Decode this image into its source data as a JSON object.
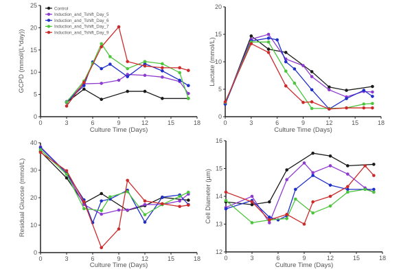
{
  "chart_data": [
    {
      "type": "line",
      "xlabel": "Culture Time (Days)",
      "ylabel": "GCPD (mmol/(L*day))",
      "xlim": [
        0,
        18
      ],
      "xticks": [
        0,
        3,
        6,
        9,
        12,
        15,
        18
      ],
      "ylim": [
        0,
        25
      ],
      "yticks": [
        0,
        5,
        10,
        15,
        20,
        25
      ],
      "legend": "top-left",
      "series": [
        {
          "name": "Control",
          "color": "#1a1a1a",
          "x": [
            3,
            5,
            7,
            10,
            12,
            14,
            17
          ],
          "y": [
            3.2,
            6.2,
            3.9,
            5.7,
            5.7,
            4.1,
            4.1
          ]
        },
        {
          "name": "Induction_and_Tshift_Day_5",
          "color": "#8e3ad0",
          "x": [
            3,
            5,
            7,
            9,
            10,
            12,
            14,
            16,
            17
          ],
          "y": [
            3.4,
            7.4,
            7.5,
            8.2,
            9.5,
            9.3,
            8.9,
            7.9,
            5.2
          ]
        },
        {
          "name": "Induction_and_Tshift_Day_6",
          "color": "#1f2fc8",
          "x": [
            3,
            5,
            6,
            7,
            8,
            10,
            12,
            14,
            16,
            17
          ],
          "y": [
            3.3,
            7.0,
            12.3,
            10.8,
            11.8,
            9.0,
            11.9,
            10.3,
            8.2,
            7.0
          ]
        },
        {
          "name": "Induction_and_Tshift_Day_7",
          "color": "#4cc43c",
          "x": [
            3,
            5,
            6,
            7,
            8,
            10,
            12,
            14,
            16,
            17
          ],
          "y": [
            3.3,
            8.0,
            12.0,
            16.4,
            13.5,
            10.8,
            12.4,
            11.9,
            9.9,
            4.1
          ]
        },
        {
          "name": "Induction_and_Tshift_Day_9",
          "color": "#cc2a2a",
          "x": [
            3,
            5,
            7,
            9,
            10,
            12,
            14,
            16,
            17
          ],
          "y": [
            2.4,
            7.7,
            15.7,
            20.2,
            12.4,
            11.4,
            11.0,
            11.0,
            10.4
          ]
        }
      ]
    },
    {
      "type": "line",
      "xlabel": "Culture Time (Days)",
      "ylabel": "Lactate (mmol/L)",
      "xlim": [
        0,
        18
      ],
      "xticks": [
        0,
        3,
        6,
        9,
        12,
        15,
        18
      ],
      "ylim": [
        0,
        20
      ],
      "yticks": [
        0,
        5,
        10,
        15,
        20
      ],
      "series": [
        {
          "color": "#1a1a1a",
          "x": [
            0,
            3,
            5,
            7,
            10,
            12,
            14,
            17
          ],
          "y": [
            2.3,
            14.7,
            12.3,
            11.7,
            8.2,
            5.4,
            4.8,
            5.5
          ]
        },
        {
          "color": "#8e3ad0",
          "x": [
            0,
            3,
            5,
            7,
            9,
            10,
            12,
            14,
            16,
            17
          ],
          "y": [
            2.5,
            14.1,
            15.0,
            10.5,
            9.3,
            7.3,
            4.9,
            3.6,
            4.6,
            4.5
          ]
        },
        {
          "color": "#1f2fc8",
          "x": [
            0,
            3,
            5,
            6,
            7,
            8,
            10,
            12,
            14,
            16,
            17
          ],
          "y": [
            2.3,
            13.8,
            14.3,
            14.0,
            10.0,
            8.7,
            4.9,
            1.4,
            3.3,
            4.8,
            3.7
          ]
        },
        {
          "color": "#4cc43c",
          "x": [
            0,
            3,
            5,
            7,
            8,
            10,
            12,
            14,
            16,
            17
          ],
          "y": [
            2.6,
            13.6,
            13.6,
            8.3,
            6.1,
            1.5,
            1.5,
            1.6,
            2.3,
            2.4
          ]
        },
        {
          "color": "#cc2a2a",
          "x": [
            0,
            3,
            5,
            7,
            9,
            10,
            12,
            14,
            16,
            17
          ],
          "y": [
            2.7,
            13.3,
            11.7,
            5.6,
            2.6,
            2.7,
            1.4,
            1.6,
            1.6,
            1.6
          ]
        }
      ]
    },
    {
      "type": "line",
      "xlabel": "Culture Time (Days)",
      "ylabel": "Residual Glucose (mmol/L)",
      "xlim": [
        0,
        18
      ],
      "xticks": [
        0,
        3,
        6,
        9,
        12,
        15,
        18
      ],
      "ylim": [
        0,
        40
      ],
      "yticks": [
        0,
        10,
        20,
        30,
        40
      ],
      "series": [
        {
          "color": "#1a1a1a",
          "x": [
            0,
            3,
            5,
            7,
            10,
            12,
            14,
            17
          ],
          "y": [
            36.8,
            27.2,
            18.0,
            21.5,
            15.4,
            17.1,
            20.1,
            19.1
          ]
        },
        {
          "color": "#8e3ad0",
          "x": [
            0,
            3,
            5,
            7,
            9,
            10,
            12,
            14,
            16,
            17
          ],
          "y": [
            38.5,
            29.0,
            17.5,
            14.0,
            15.5,
            15.5,
            17.5,
            17.5,
            18.8,
            21.3
          ]
        },
        {
          "color": "#1f2fc8",
          "x": [
            0,
            3,
            5,
            6,
            7,
            8,
            10,
            12,
            14,
            16,
            17
          ],
          "y": [
            38.2,
            29.0,
            19.2,
            10.9,
            18.8,
            19.5,
            22.7,
            11.1,
            20.2,
            21.0,
            17.5
          ]
        },
        {
          "color": "#4cc43c",
          "x": [
            0,
            3,
            5,
            7,
            8,
            10,
            12,
            14,
            16,
            17
          ],
          "y": [
            37.5,
            28.5,
            16.0,
            15.3,
            20.3,
            22.2,
            13.8,
            17.5,
            20.5,
            22.0
          ]
        },
        {
          "color": "#cc2a2a",
          "x": [
            0,
            3,
            5,
            7,
            9,
            10,
            12,
            14,
            16,
            17
          ],
          "y": [
            36.5,
            29.8,
            18.5,
            1.8,
            8.6,
            26.3,
            18.8,
            17.8,
            16.8,
            17.3
          ]
        }
      ]
    },
    {
      "type": "line",
      "xlabel": "Culture Time (Days)",
      "ylabel": "Cell Diameter (µm)",
      "xlim": [
        0,
        18
      ],
      "xticks": [
        0,
        3,
        6,
        9,
        12,
        15,
        18
      ],
      "ylim": [
        12,
        16
      ],
      "yticks": [
        12,
        13,
        14,
        15,
        16
      ],
      "series": [
        {
          "color": "#1a1a1a",
          "x": [
            0,
            3,
            5,
            7,
            10,
            12,
            14,
            17
          ],
          "y": [
            13.8,
            13.7,
            13.8,
            14.95,
            15.55,
            15.45,
            15.1,
            15.15
          ]
        },
        {
          "color": "#8e3ad0",
          "x": [
            0,
            3,
            5,
            7,
            9,
            10,
            12,
            14,
            16,
            17
          ],
          "y": [
            13.6,
            14.0,
            13.05,
            14.6,
            15.2,
            14.85,
            15.1,
            14.8,
            14.3,
            14.15
          ]
        },
        {
          "color": "#1f2fc8",
          "x": [
            0,
            3,
            5,
            6,
            7,
            8,
            10,
            12,
            14,
            16,
            17
          ],
          "y": [
            13.55,
            13.85,
            13.25,
            13.15,
            13.3,
            14.25,
            14.75,
            14.4,
            14.25,
            14.25,
            14.25
          ]
        },
        {
          "color": "#4cc43c",
          "x": [
            0,
            3,
            5,
            7,
            8,
            10,
            12,
            14,
            16,
            17
          ],
          "y": [
            13.85,
            13.05,
            13.15,
            13.2,
            13.9,
            13.4,
            13.65,
            14.15,
            14.25,
            14.15
          ]
        },
        {
          "color": "#cc2a2a",
          "x": [
            0,
            3,
            5,
            7,
            9,
            10,
            12,
            14,
            16,
            17
          ],
          "y": [
            14.15,
            13.8,
            13.15,
            13.35,
            13.0,
            13.8,
            14.0,
            14.35,
            15.1,
            14.75
          ]
        }
      ]
    }
  ]
}
